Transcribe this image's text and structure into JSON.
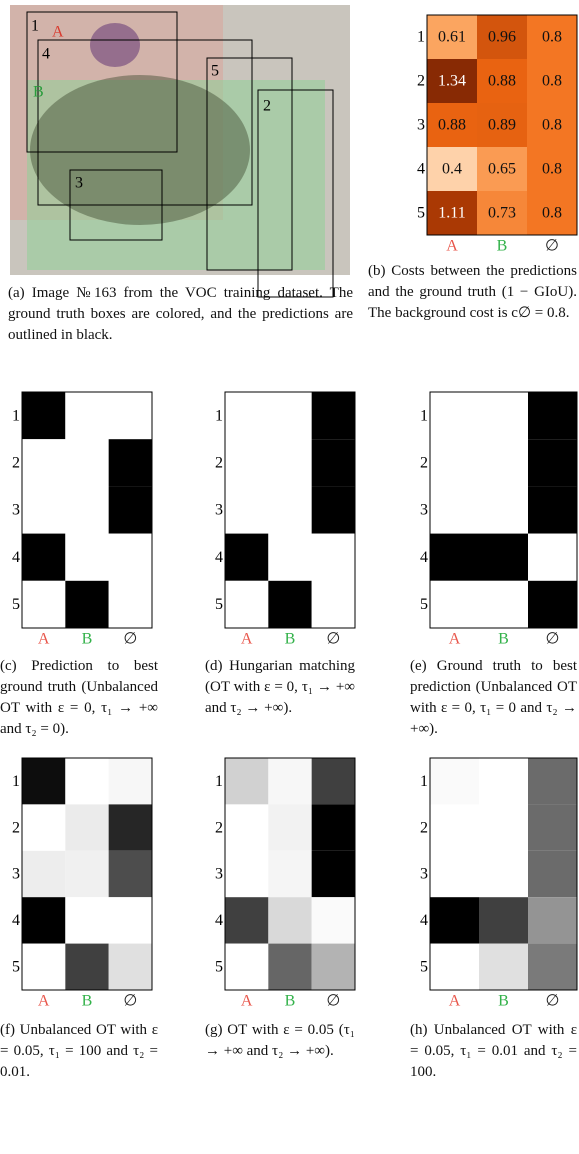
{
  "image_panel": {
    "caption": "(a) Image №163 from the VOC training dataset. The ground truth boxes are colored, and the predictions are outlined in black.",
    "ground_truth_labels": [
      "A",
      "B"
    ],
    "prediction_labels": [
      "1",
      "2",
      "3",
      "4",
      "5"
    ]
  },
  "row_labels": [
    "1",
    "2",
    "3",
    "4",
    "5"
  ],
  "col_labels": [
    {
      "label": "A",
      "color": "#e8554a"
    },
    {
      "label": "B",
      "color": "#33b24a"
    },
    {
      "label": "∅",
      "color": "#222222"
    }
  ],
  "cost_panel": {
    "caption": "(b) Costs between the predictions and the ground truth (1 − GIoU). The background cost is c∅ = 0.8.",
    "cells": [
      [
        0.61,
        0.96,
        0.8
      ],
      [
        1.34,
        0.88,
        0.8
      ],
      [
        0.88,
        0.89,
        0.8
      ],
      [
        0.4,
        0.65,
        0.8
      ],
      [
        1.11,
        0.73,
        0.8
      ]
    ]
  },
  "matrix_panels": [
    {
      "caption": "(c) Prediction to best ground truth (Unbalanced OT with ε = 0, τ₁ → +∞ and τ₂ = 0).",
      "cells": [
        [
          1,
          0,
          0
        ],
        [
          0,
          0,
          1
        ],
        [
          0,
          0,
          1
        ],
        [
          1,
          0,
          0
        ],
        [
          0,
          1,
          0
        ]
      ]
    },
    {
      "caption": "(d) Hungarian matching (OT with ε = 0, τ₁ → +∞ and τ₂ → +∞).",
      "cells": [
        [
          0,
          0,
          1
        ],
        [
          0,
          0,
          1
        ],
        [
          0,
          0,
          1
        ],
        [
          1,
          0,
          0
        ],
        [
          0,
          1,
          0
        ]
      ]
    },
    {
      "caption": "(e) Ground truth to best prediction (Unbalanced OT with ε = 0, τ₁ = 0 and τ₂ → +∞).",
      "cells": [
        [
          0,
          0,
          1
        ],
        [
          0,
          0,
          1
        ],
        [
          0,
          0,
          1
        ],
        [
          1,
          1,
          0
        ],
        [
          0,
          0,
          1
        ]
      ]
    },
    {
      "caption": "(f) Unbalanced OT with ε = 0.05, τ₁ = 100 and τ₂ = 0.01.",
      "cells": [
        [
          0.95,
          0,
          0.03
        ],
        [
          0,
          0.08,
          0.85
        ],
        [
          0.07,
          0.06,
          0.7
        ],
        [
          1,
          0,
          0
        ],
        [
          0,
          0.75,
          0.12
        ]
      ]
    },
    {
      "caption": "(g) OT with ε = 0.05 (τ₁ → +∞ and τ₂ → +∞).",
      "cells": [
        [
          0.18,
          0.03,
          0.75
        ],
        [
          0,
          0.05,
          1
        ],
        [
          0,
          0.04,
          1
        ],
        [
          0.75,
          0.15,
          0.02
        ],
        [
          0,
          0.6,
          0.3
        ]
      ]
    },
    {
      "caption": "(h) Unbalanced OT with ε = 0.05, τ₁ = 0.01 and τ₂ = 100.",
      "cells": [
        [
          0.02,
          0,
          0.58
        ],
        [
          0,
          0,
          0.58
        ],
        [
          0,
          0,
          0.58
        ],
        [
          1,
          0.75,
          0.42
        ],
        [
          0,
          0.12,
          0.52
        ]
      ]
    }
  ]
}
